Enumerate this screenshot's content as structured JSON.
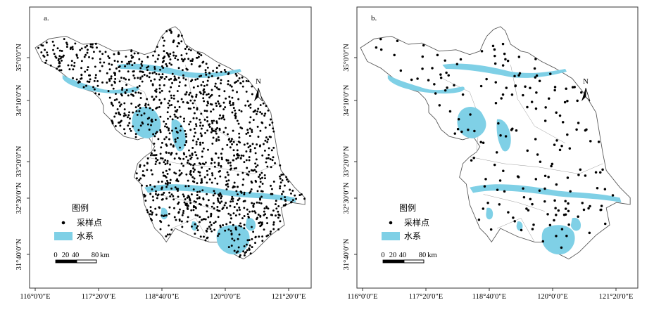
{
  "panels": [
    {
      "label": "a.",
      "y_ticks": [
        "35°0′0″N",
        "34°10′0″N",
        "33°20′0″N",
        "32°30′0″N",
        "31°40′0″N"
      ],
      "x_ticks": [
        "116°0′0″E",
        "117°20′0″E",
        "118°40′0″E",
        "120°0′0″E",
        "121°20′0″E"
      ],
      "legend": {
        "title": "图例",
        "points": "采样点",
        "water": "水系"
      },
      "north": "N",
      "scale": {
        "ticks": [
          "0",
          "20",
          "40",
          "80"
        ],
        "unit": "km"
      },
      "dot_density": "dense"
    },
    {
      "label": "b.",
      "y_ticks": [
        "35°0′0″N",
        "34°10′0″N",
        "33°20′0″N",
        "32°30′0″N",
        "31°40′0″N"
      ],
      "x_ticks": [
        "116°0′0″E",
        "117°20′0″E",
        "118°40′0″E",
        "120°0′0″E",
        "121°20′0″E"
      ],
      "legend": {
        "title": "图例",
        "points": "采样点",
        "water": "水系"
      },
      "north": "N",
      "scale": {
        "ticks": [
          "0",
          "20",
          "40",
          "80"
        ],
        "unit": "km"
      },
      "dot_density": "sparse"
    }
  ],
  "colors": {
    "water": "#7fd0e6",
    "points": "#000000",
    "frame": "#333333",
    "boundary": "#555555"
  }
}
